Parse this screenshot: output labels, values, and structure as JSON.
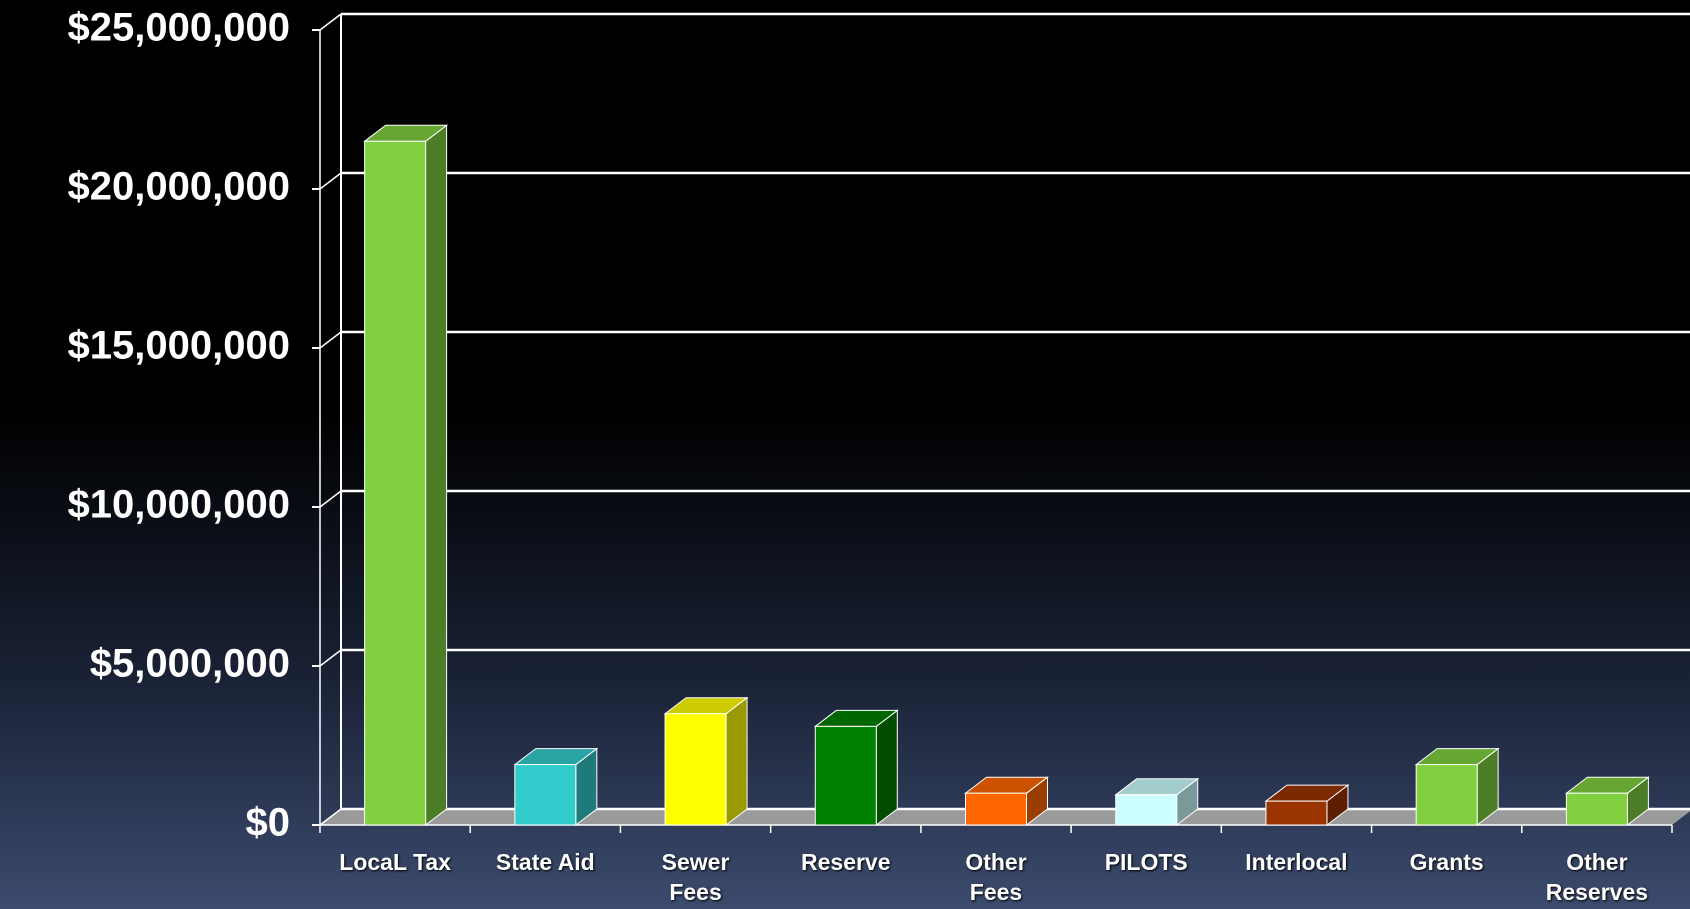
{
  "chart_data": {
    "type": "bar3d",
    "categories": [
      "LocaL Tax",
      "State Aid",
      "Sewer\nFees",
      "Reserve",
      "Other\nFees",
      "PILOTS",
      "Interlocal",
      "Grants",
      "Other\nReserves"
    ],
    "values": [
      21500000,
      1900000,
      3500000,
      3100000,
      1000000,
      950000,
      750000,
      1900000,
      1000000
    ],
    "colors": [
      "#80d040",
      "#33cccc",
      "#ffff00",
      "#008000",
      "#ff6600",
      "#ccffff",
      "#993300",
      "#80d040",
      "#80d040"
    ],
    "ylim": [
      0,
      25000000
    ],
    "yticks": [
      {
        "value": 0,
        "label": "$0"
      },
      {
        "value": 5000000,
        "label": "$5,000,000"
      },
      {
        "value": 10000000,
        "label": "$10,000,000"
      },
      {
        "value": 15000000,
        "label": "$15,000,000"
      },
      {
        "value": 20000000,
        "label": "$20,000,000"
      },
      {
        "value": 25000000,
        "label": "$25,000,000"
      }
    ],
    "grid": true
  }
}
